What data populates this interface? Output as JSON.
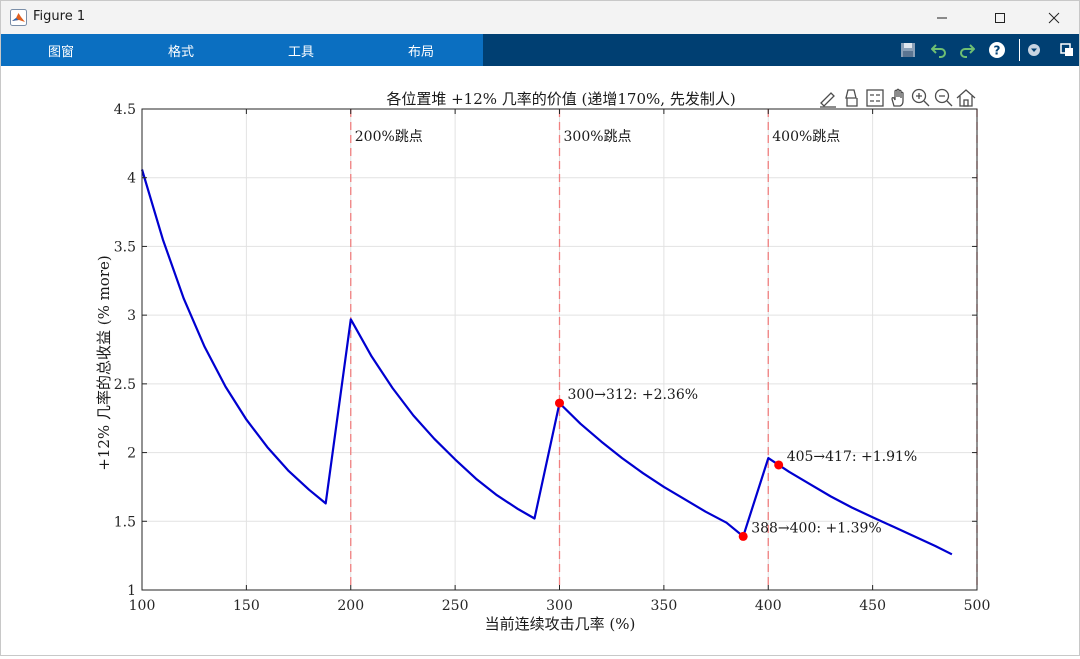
{
  "window": {
    "title": "Figure 1",
    "app_icon": "matlab-logo-icon",
    "controls": [
      "minimize-icon",
      "maximize-icon",
      "close-icon"
    ]
  },
  "toolstrip": {
    "tabs": [
      {
        "label": "图窗"
      },
      {
        "label": "格式"
      },
      {
        "label": "工具"
      },
      {
        "label": "布局"
      }
    ],
    "quick_access": [
      "save-icon",
      "undo-icon",
      "redo-icon",
      "help-icon",
      "dropdown-icon",
      "undock-icon"
    ],
    "colors": {
      "tab_bg": "#0b6fc1",
      "strip_bg": "#003f72"
    }
  },
  "axes_toolbar": [
    "brush-edit-icon",
    "data-cursor-icon",
    "legend-icon",
    "pan-icon",
    "zoom-in-icon",
    "zoom-out-icon",
    "home-icon"
  ],
  "chart_data": {
    "type": "line",
    "title": "各位置堆 +12% 几率的价值 (递增170%, 先发制人)",
    "xlabel": "当前连续攻击几率 (%)",
    "ylabel": "+12% 几率的总收益 (% more)",
    "xlim": [
      100,
      500
    ],
    "ylim": [
      1,
      4.5
    ],
    "xticks": [
      100,
      150,
      200,
      250,
      300,
      350,
      400,
      450,
      500
    ],
    "yticks": [
      1,
      1.5,
      2,
      2.5,
      3,
      3.5,
      4,
      4.5
    ],
    "grid": true,
    "line_color": "#0000d0",
    "segments": [
      {
        "x": [
          100,
          110,
          120,
          130,
          140,
          150,
          160,
          170,
          180,
          188
        ],
        "y": [
          4.06,
          3.55,
          3.12,
          2.77,
          2.48,
          2.24,
          2.04,
          1.87,
          1.73,
          1.63
        ]
      },
      {
        "x": [
          188,
          200
        ],
        "y": [
          1.63,
          2.97
        ]
      },
      {
        "x": [
          200,
          210,
          220,
          230,
          240,
          250,
          260,
          270,
          280,
          288
        ],
        "y": [
          2.97,
          2.7,
          2.47,
          2.27,
          2.1,
          1.95,
          1.81,
          1.69,
          1.59,
          1.52
        ]
      },
      {
        "x": [
          288,
          300
        ],
        "y": [
          1.52,
          2.36
        ]
      },
      {
        "x": [
          300,
          310,
          320,
          330,
          340,
          350,
          360,
          370,
          380,
          388
        ],
        "y": [
          2.36,
          2.21,
          2.08,
          1.96,
          1.85,
          1.75,
          1.66,
          1.57,
          1.49,
          1.39
        ]
      },
      {
        "x": [
          388,
          400
        ],
        "y": [
          1.39,
          1.96
        ]
      },
      {
        "x": [
          400,
          405,
          410,
          420,
          430,
          440,
          450,
          460,
          470,
          480,
          488
        ],
        "y": [
          1.96,
          1.91,
          1.86,
          1.77,
          1.68,
          1.6,
          1.53,
          1.46,
          1.39,
          1.32,
          1.26
        ]
      }
    ],
    "vlines": [
      {
        "x": 200,
        "label": "200%跳点"
      },
      {
        "x": 300,
        "label": "300%跳点"
      },
      {
        "x": 400,
        "label": "400%跳点"
      }
    ],
    "vline_color": "#f08080",
    "points": [
      {
        "x": 300,
        "y": 2.36,
        "label": "300→312: +2.36%"
      },
      {
        "x": 388,
        "y": 1.39,
        "label": "388→400: +1.39%"
      },
      {
        "x": 405,
        "y": 1.91,
        "label": "405→417: +1.91%"
      }
    ],
    "point_color": "#ff0000"
  }
}
